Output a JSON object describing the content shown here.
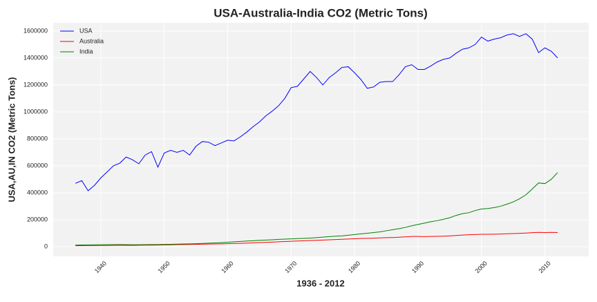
{
  "chart_data": {
    "type": "line",
    "title": "USA-Australia-India CO2 (Metric Tons)",
    "xlabel": "1936 - 2012",
    "ylabel": "USA,AU,IN CO2 (Metric Tons)",
    "x": [
      1936,
      1937,
      1938,
      1939,
      1940,
      1941,
      1942,
      1943,
      1944,
      1945,
      1946,
      1947,
      1948,
      1949,
      1950,
      1951,
      1952,
      1953,
      1954,
      1955,
      1956,
      1957,
      1958,
      1959,
      1960,
      1961,
      1962,
      1963,
      1964,
      1965,
      1966,
      1967,
      1968,
      1969,
      1970,
      1971,
      1972,
      1973,
      1974,
      1975,
      1976,
      1977,
      1978,
      1979,
      1980,
      1981,
      1982,
      1983,
      1984,
      1985,
      1986,
      1987,
      1988,
      1989,
      1990,
      1991,
      1992,
      1993,
      1994,
      1995,
      1996,
      1997,
      1998,
      1999,
      2000,
      2001,
      2002,
      2003,
      2004,
      2005,
      2006,
      2007,
      2008,
      2009,
      2010,
      2011,
      2012
    ],
    "series": [
      {
        "name": "USA",
        "color": "#0000ff",
        "values": [
          470000,
          490000,
          415000,
          455000,
          510000,
          555000,
          600000,
          620000,
          665000,
          645000,
          615000,
          680000,
          705000,
          590000,
          695000,
          715000,
          700000,
          715000,
          680000,
          745000,
          780000,
          775000,
          750000,
          770000,
          790000,
          785000,
          815000,
          850000,
          890000,
          925000,
          970000,
          1005000,
          1045000,
          1100000,
          1180000,
          1190000,
          1245000,
          1300000,
          1255000,
          1200000,
          1255000,
          1290000,
          1330000,
          1335000,
          1290000,
          1240000,
          1175000,
          1185000,
          1220000,
          1225000,
          1225000,
          1275000,
          1335000,
          1350000,
          1315000,
          1315000,
          1340000,
          1370000,
          1390000,
          1400000,
          1435000,
          1465000,
          1475000,
          1500000,
          1555000,
          1525000,
          1540000,
          1550000,
          1570000,
          1580000,
          1560000,
          1580000,
          1540000,
          1440000,
          1475000,
          1450000,
          1400000
        ]
      },
      {
        "name": "Australia",
        "color": "#ff0000",
        "values": [
          7000,
          7500,
          8000,
          8200,
          8500,
          9000,
          9500,
          10000,
          9800,
          9500,
          10500,
          11000,
          11500,
          12000,
          13000,
          14000,
          15000,
          15500,
          16500,
          17500,
          18500,
          19500,
          20000,
          21000,
          22500,
          24000,
          25000,
          26500,
          28500,
          30500,
          32500,
          34000,
          36000,
          38000,
          40000,
          42000,
          44000,
          46000,
          47500,
          49000,
          51000,
          53000,
          55000,
          57000,
          59000,
          61000,
          62000,
          63000,
          65000,
          67000,
          68000,
          70000,
          73000,
          76000,
          76000,
          75000,
          76000,
          77000,
          78000,
          80000,
          83000,
          86000,
          89000,
          90000,
          92000,
          92000,
          93000,
          94000,
          96000,
          97000,
          99000,
          101000,
          104000,
          106000,
          105000,
          106000,
          105000
        ]
      },
      {
        "name": "India",
        "color": "#008000",
        "values": [
          12000,
          13000,
          13500,
          14000,
          14500,
          15000,
          15500,
          16000,
          15000,
          14500,
          14500,
          15000,
          15500,
          16000,
          17000,
          18000,
          19000,
          20000,
          21000,
          22500,
          24000,
          26000,
          28000,
          30000,
          33000,
          36000,
          39000,
          42000,
          44000,
          47000,
          49000,
          51000,
          54000,
          56000,
          58000,
          60000,
          62000,
          64000,
          67000,
          71000,
          75000,
          78000,
          80000,
          85000,
          90000,
          95000,
          100000,
          105000,
          110000,
          118000,
          126000,
          134000,
          143000,
          155000,
          165000,
          175000,
          185000,
          193000,
          203000,
          215000,
          232000,
          245000,
          252000,
          268000,
          280000,
          283000,
          290000,
          300000,
          315000,
          332000,
          355000,
          385000,
          428000,
          473000,
          468000,
          500000,
          550000
        ]
      }
    ],
    "xlim": [
      1932.5,
      2016.9
    ],
    "xticks": [
      1940,
      1950,
      1960,
      1970,
      1980,
      1990,
      2000,
      2010
    ],
    "ylim": [
      -72000,
      1661000
    ],
    "yticks": [
      0,
      200000,
      400000,
      600000,
      800000,
      1000000,
      1200000,
      1400000,
      1600000
    ],
    "grid": true,
    "legend": "upper left"
  }
}
